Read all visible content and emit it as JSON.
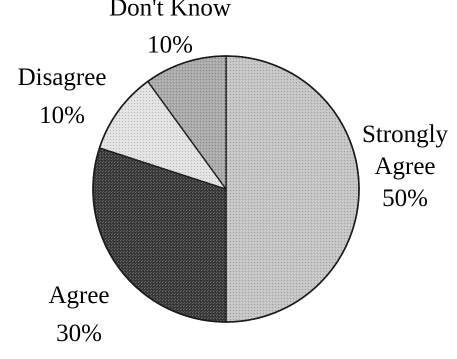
{
  "chart_data": {
    "type": "pie",
    "title": "",
    "slices": [
      {
        "label_lines": [
          "Strongly",
          "Agree"
        ],
        "value": 50,
        "value_label": "50%",
        "color": "#c4c4c4"
      },
      {
        "label_lines": [
          "Agree"
        ],
        "value": 30,
        "value_label": "30%",
        "color": "#3a3a3a"
      },
      {
        "label_lines": [
          "Disagree"
        ],
        "value": 10,
        "value_label": "10%",
        "color": "#e2e2e2"
      },
      {
        "label_lines": [
          "Don't Know"
        ],
        "value": 10,
        "value_label": "10%",
        "color": "#a9a9a9"
      }
    ],
    "start_angle": "12 o'clock",
    "direction": "clockwise",
    "legend": "none",
    "label_placement": "outside"
  }
}
